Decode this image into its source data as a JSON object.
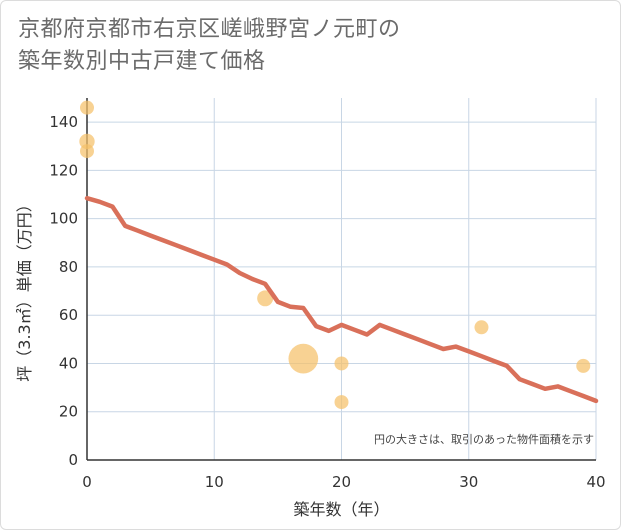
{
  "title": {
    "line1": "京都府京都市右京区嵯峨野宮ノ元町の",
    "line2": "築年数別中古戸建て価格"
  },
  "chart_data": {
    "type": "scatter",
    "xlabel": "築年数（年）",
    "ylabel": "坪（3.3㎡）単価（万円）",
    "xlim": [
      0,
      40
    ],
    "ylim": [
      0,
      150
    ],
    "xticks": [
      0,
      10,
      20,
      30,
      40
    ],
    "yticks": [
      0,
      20,
      40,
      60,
      80,
      100,
      120,
      140
    ],
    "grid": true,
    "note": "円の大きさは、取引のあった物件面積を示す",
    "colors": {
      "points": "#f5c06a",
      "line": "#d9705a",
      "grid": "#c8d6e5"
    },
    "points": [
      {
        "x": 0,
        "y": 146,
        "size": 1
      },
      {
        "x": 0,
        "y": 132,
        "size": 1.2
      },
      {
        "x": 0,
        "y": 128,
        "size": 1
      },
      {
        "x": 14,
        "y": 67,
        "size": 1.3
      },
      {
        "x": 17,
        "y": 42,
        "size": 4.5
      },
      {
        "x": 20,
        "y": 40,
        "size": 1
      },
      {
        "x": 20,
        "y": 24,
        "size": 1
      },
      {
        "x": 31,
        "y": 55,
        "size": 1
      },
      {
        "x": 39,
        "y": 39,
        "size": 1
      }
    ],
    "trend": {
      "x": [
        0,
        1,
        2,
        3,
        4,
        5,
        6,
        7,
        8,
        9,
        10,
        11,
        12,
        13,
        14,
        15,
        16,
        17,
        18,
        19,
        20,
        21,
        22,
        23,
        24,
        25,
        26,
        27,
        28,
        29,
        30,
        31,
        32,
        33,
        34,
        35,
        36,
        37,
        38,
        39,
        40
      ],
      "y": [
        108.5,
        107,
        105,
        97,
        95,
        93,
        91,
        89,
        87,
        85,
        83,
        81,
        77.5,
        75,
        73,
        65.5,
        63.5,
        63,
        55.5,
        53.5,
        56,
        54,
        52,
        56,
        54,
        52,
        50,
        48,
        46,
        47,
        45,
        43,
        41,
        39,
        33.5,
        31.5,
        29.5,
        30.5,
        28.5,
        26.5,
        24.5
      ]
    }
  }
}
